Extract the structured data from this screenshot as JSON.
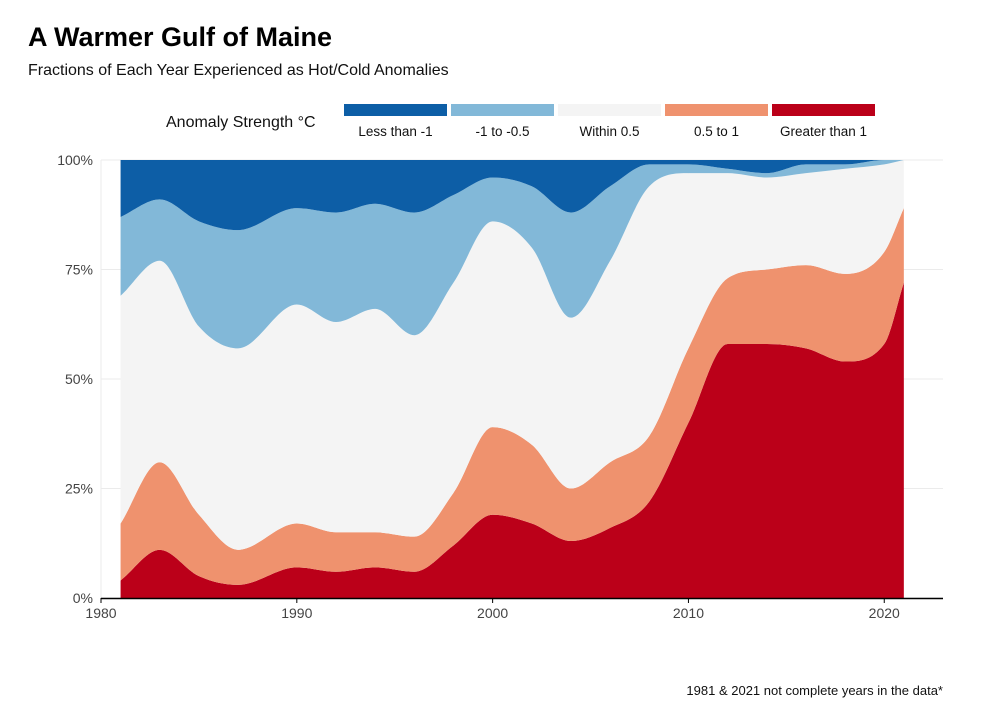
{
  "title": "A Warmer Gulf of Maine",
  "subtitle": "Fractions of Each Year Experienced as Hot/Cold Anomalies",
  "caption": "1981 & 2021 not complete years in the data*",
  "chart_data": {
    "type": "area",
    "stacked": true,
    "smoothed": true,
    "title": "A Warmer Gulf of Maine",
    "subtitle": "Fractions of Each Year Experienced as Hot/Cold Anomalies",
    "xlabel": "",
    "ylabel": "",
    "xlim": [
      1980,
      2023
    ],
    "ylim": [
      0,
      100
    ],
    "x_ticks": [
      1980,
      1990,
      2000,
      2010,
      2020
    ],
    "x_tick_labels": [
      "1980",
      "1990",
      "2000",
      "2010",
      "2020"
    ],
    "y_ticks": [
      0,
      25,
      50,
      75,
      100
    ],
    "y_tick_labels": [
      "0%",
      "25%",
      "50%",
      "75%",
      "100%"
    ],
    "legend_title": "Anomaly Strength °C",
    "legend_position": "top",
    "x": [
      1981,
      1983,
      1985,
      1987,
      1990,
      1992,
      1994,
      1996,
      1998,
      2000,
      2002,
      2004,
      2006,
      2008,
      2010,
      2012,
      2014,
      2016,
      2018,
      2020,
      2021
    ],
    "series": [
      {
        "name": "Greater than 1",
        "color": "#bb0019",
        "values": [
          4,
          11,
          5,
          3,
          7,
          6,
          7,
          6,
          12,
          19,
          17,
          13,
          16,
          22,
          40,
          58,
          58,
          57,
          54,
          58,
          72
        ]
      },
      {
        "name": "0.5 to 1",
        "color": "#ef926e",
        "values": [
          13,
          20,
          14,
          8,
          10,
          9,
          8,
          8,
          12,
          20,
          18,
          12,
          15,
          15,
          17,
          15,
          17,
          19,
          20,
          21,
          17
        ]
      },
      {
        "name": "Within 0.5",
        "color": "#f4f4f4",
        "values": [
          52,
          46,
          43,
          46,
          50,
          48,
          51,
          46,
          48,
          47,
          45,
          39,
          46,
          57,
          40,
          24,
          21,
          21,
          24,
          20,
          11
        ]
      },
      {
        "name": "-1 to -0.5",
        "color": "#82b8d8",
        "values": [
          18,
          14,
          24,
          27,
          22,
          25,
          24,
          28,
          20,
          10,
          14,
          24,
          17,
          5,
          2,
          1,
          1,
          2,
          1,
          1,
          0
        ]
      },
      {
        "name": "Less than -1",
        "color": "#0d5ea6",
        "values": [
          13,
          9,
          14,
          16,
          11,
          12,
          10,
          12,
          8,
          4,
          6,
          12,
          6,
          1,
          1,
          2,
          3,
          1,
          1,
          0,
          0
        ]
      }
    ],
    "legend": [
      {
        "label": "Less than -1",
        "color": "#0d5ea6"
      },
      {
        "label": "-1 to -0.5",
        "color": "#82b8d8"
      },
      {
        "label": "Within 0.5",
        "color": "#f4f4f4"
      },
      {
        "label": "0.5 to 1",
        "color": "#ef926e"
      },
      {
        "label": "Greater than 1",
        "color": "#bb0019"
      }
    ]
  }
}
